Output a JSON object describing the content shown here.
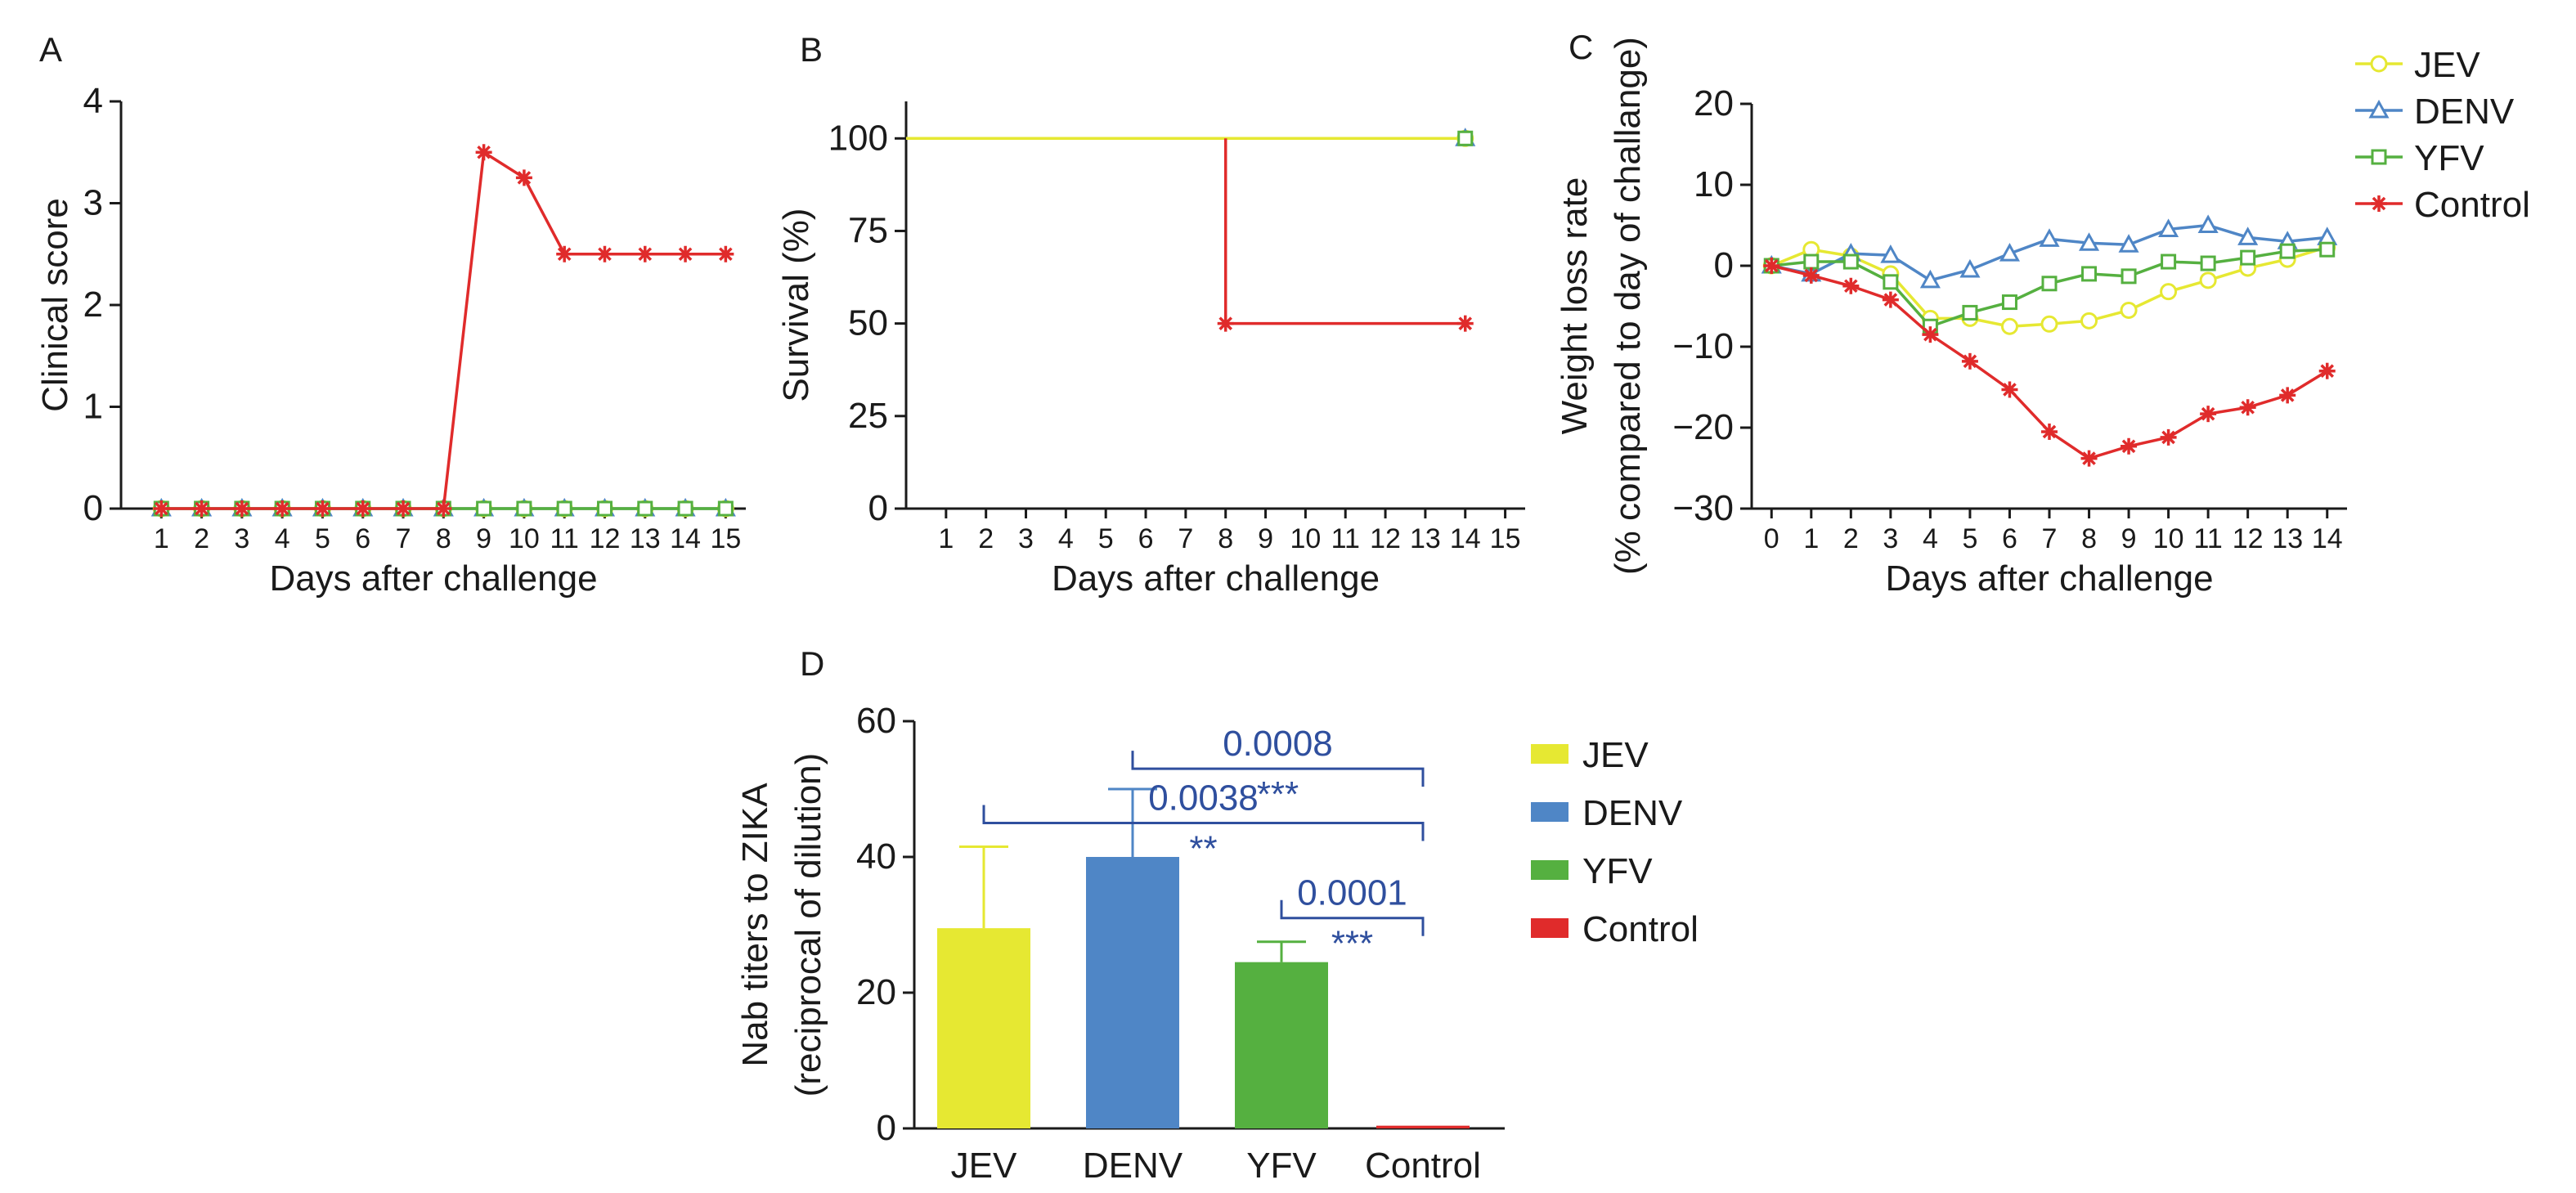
{
  "chart_data": [
    {
      "panel": "A",
      "type": "line",
      "xlabel": "Days after challenge",
      "ylabel": "Clinical score",
      "xticks": [
        1,
        2,
        3,
        4,
        5,
        6,
        7,
        8,
        9,
        10,
        11,
        12,
        13,
        14,
        15
      ],
      "yticks": [
        0,
        1,
        2,
        3,
        4
      ],
      "xlim": [
        0,
        15.5
      ],
      "ylim": [
        0,
        4
      ],
      "x": [
        1,
        2,
        3,
        4,
        5,
        6,
        7,
        8,
        9,
        10,
        11,
        12,
        13,
        14,
        15
      ],
      "series": [
        {
          "name": "JEV",
          "color": "#e6e832",
          "marker": "circle",
          "values": [
            0,
            0,
            0,
            0,
            0,
            0,
            0,
            0,
            0,
            0,
            0,
            0,
            0,
            0,
            0
          ]
        },
        {
          "name": "DENV",
          "color": "#4f86c6",
          "marker": "triangle",
          "values": [
            0,
            0,
            0,
            0,
            0,
            0,
            0,
            0,
            0,
            0,
            0,
            0,
            0,
            0,
            0
          ]
        },
        {
          "name": "YFV",
          "color": "#55b040",
          "marker": "square",
          "values": [
            0,
            0,
            0,
            0,
            0,
            0,
            0,
            0,
            0,
            0,
            0,
            0,
            0,
            0,
            0
          ]
        },
        {
          "name": "Control",
          "color": "#e02b2b",
          "marker": "star",
          "values": [
            0,
            0,
            0,
            0,
            0,
            0,
            0,
            0,
            3.5,
            3.25,
            2.5,
            2.5,
            2.5,
            2.5,
            2.5
          ]
        }
      ]
    },
    {
      "panel": "B",
      "type": "line",
      "xlabel": "Days after challenge",
      "ylabel": "Survival (%)",
      "xticks": [
        1,
        2,
        3,
        4,
        5,
        6,
        7,
        8,
        9,
        10,
        11,
        12,
        13,
        14,
        15
      ],
      "yticks": [
        0,
        25,
        50,
        75,
        100
      ],
      "xlim": [
        0,
        15.5
      ],
      "ylim": [
        0,
        110
      ],
      "series": [
        {
          "name": "JEV",
          "color": "#e6e832",
          "steps": [
            [
              0,
              100
            ],
            [
              14,
              100
            ]
          ],
          "markers": [
            [
              14,
              100
            ]
          ],
          "marker": "circle"
        },
        {
          "name": "DENV",
          "color": "#4f86c6",
          "steps": [
            [
              14,
              100
            ]
          ],
          "markers": [
            [
              14,
              100
            ]
          ],
          "marker": "triangle"
        },
        {
          "name": "YFV",
          "color": "#55b040",
          "steps": [
            [
              14,
              100
            ]
          ],
          "markers": [
            [
              14,
              100
            ]
          ],
          "marker": "square"
        },
        {
          "name": "Control",
          "color": "#e02b2b",
          "steps": [
            [
              8,
              100
            ],
            [
              8,
              50
            ],
            [
              14,
              50
            ]
          ],
          "markers": [
            [
              8,
              50
            ],
            [
              14,
              50
            ]
          ],
          "marker": "star"
        }
      ]
    },
    {
      "panel": "C",
      "type": "line",
      "xlabel": "Days after challenge",
      "ylabel_line1": "Weight loss rate",
      "ylabel_line2": "(% compared to day of challange)",
      "xticks": [
        0,
        1,
        2,
        3,
        4,
        5,
        6,
        7,
        8,
        9,
        10,
        11,
        12,
        13,
        14
      ],
      "yticks": [
        -30,
        -20,
        -10,
        0,
        10,
        20
      ],
      "ytick_labels": [
        "−30",
        "−20",
        "−10",
        "0",
        "10",
        "20"
      ],
      "xlim": [
        -0.5,
        14.5
      ],
      "ylim": [
        -30,
        20
      ],
      "x": [
        0,
        1,
        2,
        3,
        4,
        5,
        6,
        7,
        8,
        9,
        10,
        11,
        12,
        13,
        14
      ],
      "series": [
        {
          "name": "JEV",
          "color": "#e6e832",
          "marker": "circle",
          "values": [
            0,
            2,
            1.2,
            -1,
            -6.5,
            -6.5,
            -7.5,
            -7.2,
            -6.8,
            -5.5,
            -3.2,
            -1.8,
            -0.3,
            0.8,
            2.3
          ]
        },
        {
          "name": "DENV",
          "color": "#4f86c6",
          "marker": "triangle",
          "values": [
            0,
            -1,
            1.5,
            1.3,
            -1.8,
            -0.5,
            1.5,
            3.3,
            2.8,
            2.6,
            4.5,
            5,
            3.5,
            3,
            3.5
          ]
        },
        {
          "name": "YFV",
          "color": "#55b040",
          "marker": "square",
          "values": [
            0,
            0.5,
            0.5,
            -2,
            -7.5,
            -5.8,
            -4.5,
            -2.2,
            -1,
            -1.3,
            0.5,
            0.3,
            1,
            1.8,
            2
          ]
        },
        {
          "name": "Control",
          "color": "#e02b2b",
          "marker": "star",
          "values": [
            0,
            -1.2,
            -2.5,
            -4.2,
            -8.5,
            -11.8,
            -15.3,
            -20.5,
            -23.8,
            -22.3,
            -21.2,
            -18.3,
            -17.5,
            -16,
            -13
          ]
        }
      ]
    },
    {
      "panel": "D",
      "type": "bar",
      "ylabel_line1": "Nab titers to ZIKA",
      "ylabel_line2": "(reciprocal of dilution)",
      "categories": [
        "JEV",
        "DENV",
        "YFV",
        "Control"
      ],
      "values": [
        29.5,
        40,
        24.5,
        0.4
      ],
      "errors": [
        12,
        10,
        3,
        0
      ],
      "colors": [
        "#e6e832",
        "#4f86c6",
        "#55b040",
        "#e02b2b"
      ],
      "yticks": [
        0,
        20,
        40,
        60
      ],
      "ylim": [
        0,
        60
      ],
      "comparisons": [
        {
          "from": 1,
          "to": 3,
          "p": "0.0008",
          "stars": "***",
          "y": 53
        },
        {
          "from": 0,
          "to": 3,
          "p": "0.0038",
          "stars": "**",
          "y": 45
        },
        {
          "from": 2,
          "to": 3,
          "p": "0.0001",
          "stars": "***",
          "y": 31
        }
      ]
    }
  ],
  "panel_labels": {
    "a": "A",
    "b": "B",
    "c": "C",
    "d": "D"
  },
  "legend_top": {
    "items": [
      {
        "name": "JEV",
        "color": "#e6e832",
        "marker": "circle"
      },
      {
        "name": "DENV",
        "color": "#4f86c6",
        "marker": "triangle"
      },
      {
        "name": "YFV",
        "color": "#55b040",
        "marker": "square"
      },
      {
        "name": "Control",
        "color": "#e02b2b",
        "marker": "star"
      }
    ]
  },
  "legend_bottom": {
    "items": [
      {
        "name": "JEV",
        "color": "#e6e832"
      },
      {
        "name": "DENV",
        "color": "#4f86c6"
      },
      {
        "name": "YFV",
        "color": "#55b040"
      },
      {
        "name": "Control",
        "color": "#e02b2b"
      }
    ]
  }
}
